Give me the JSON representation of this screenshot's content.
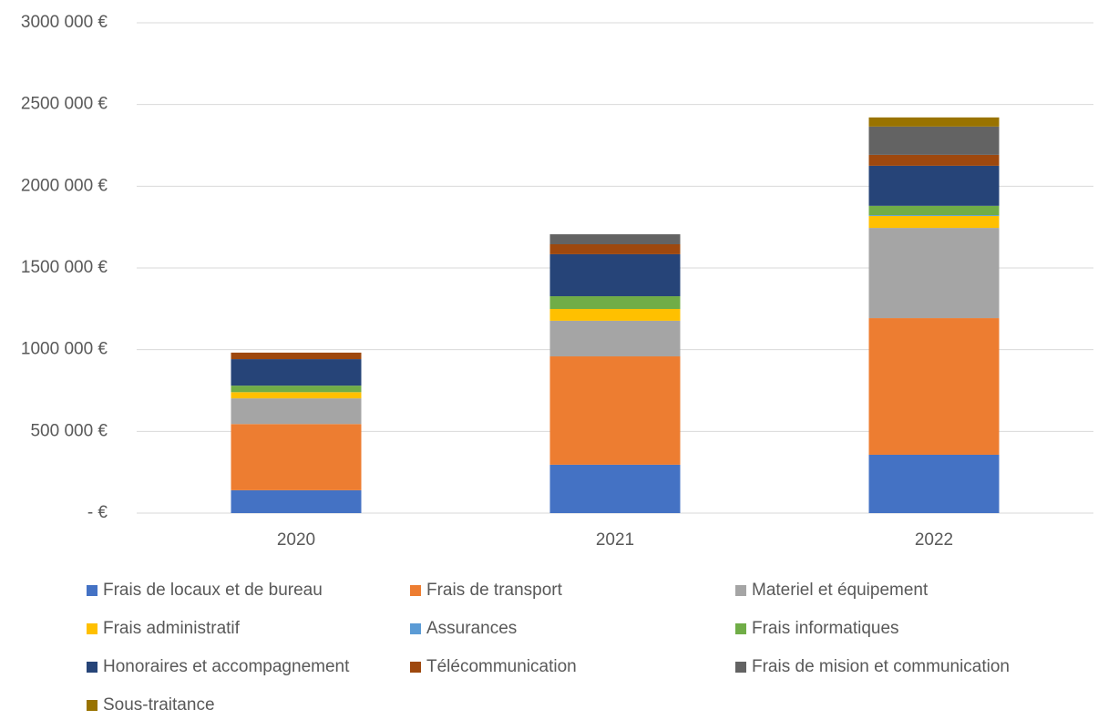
{
  "chart_data": {
    "type": "stacked_bar",
    "categories": [
      "2020",
      "2021",
      "2022"
    ],
    "series": [
      {
        "name": "Frais de locaux et de bureau",
        "color": "#4472c4",
        "values": [
          140000,
          296000,
          357000
        ]
      },
      {
        "name": "Frais de transport",
        "color": "#ed7d31",
        "values": [
          405000,
          663000,
          836000
        ]
      },
      {
        "name": "Materiel et équipement",
        "color": "#a5a5a5",
        "values": [
          157000,
          218000,
          552000
        ]
      },
      {
        "name": "Frais administratif",
        "color": "#ffc000",
        "values": [
          38000,
          72000,
          73000
        ]
      },
      {
        "name": "Assurances",
        "color": "#5b9bd5",
        "values": [
          0,
          0,
          5000
        ]
      },
      {
        "name": "Frais informatiques",
        "color": "#70ad47",
        "values": [
          40000,
          78000,
          57000
        ]
      },
      {
        "name": "Honoraires et accompagnement",
        "color": "#264478",
        "values": [
          162000,
          257000,
          245000
        ]
      },
      {
        "name": "Télécommunication",
        "color": "#9e480e",
        "values": [
          40000,
          61000,
          67000
        ]
      },
      {
        "name": "Frais de mision et communication",
        "color": "#636363",
        "values": [
          0,
          61000,
          173000
        ]
      },
      {
        "name": "Sous-traitance",
        "color": "#997300",
        "values": [
          0,
          0,
          56000
        ]
      }
    ],
    "ylim": [
      0,
      3000000
    ],
    "yticks": [
      {
        "value": 0,
        "label": "-   €"
      },
      {
        "value": 500000,
        "label": "500 000 €"
      },
      {
        "value": 1000000,
        "label": "1000 000 €"
      },
      {
        "value": 1500000,
        "label": "1500 000 €"
      },
      {
        "value": 2000000,
        "label": "2000 000 €"
      },
      {
        "value": 2500000,
        "label": "2500 000 €"
      },
      {
        "value": 3000000,
        "label": "3000 000 €"
      }
    ],
    "grid": true
  }
}
